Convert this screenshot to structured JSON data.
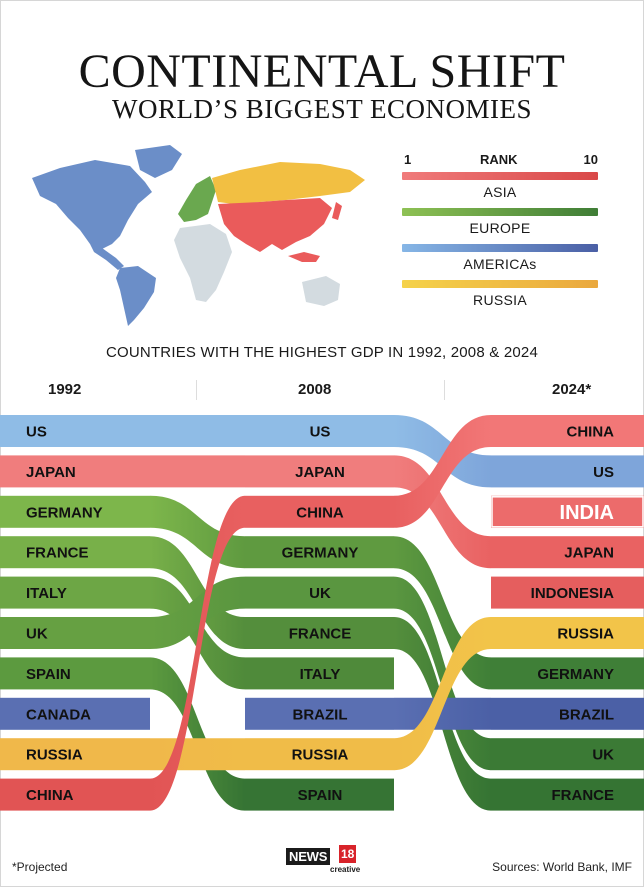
{
  "header": {
    "title": "CONTINENTAL SHIFT",
    "subtitle": "WORLD’S BIGGEST ECONOMIES"
  },
  "legend": {
    "rank_left": "1",
    "rank_label": "RANK",
    "rank_right": "10",
    "items": [
      {
        "label": "ASIA",
        "color_light": "#f07b7b",
        "color_dark": "#d94848"
      },
      {
        "label": "EUROPE",
        "color_light": "#8ec154",
        "color_dark": "#3f7d36"
      },
      {
        "label": "AMERICAs",
        "color_light": "#86b6e6",
        "color_dark": "#4a5fa5"
      },
      {
        "label": "RUSSIA",
        "color_light": "#f5d24a",
        "color_dark": "#eaa83e"
      }
    ]
  },
  "map_colors": {
    "americas": "#6b8ec8",
    "europe": "#6aa84f",
    "russia": "#f2bf42",
    "asia": "#ea5b5b",
    "other": "#d3dbe0"
  },
  "chart_data": {
    "type": "bump",
    "title": "COUNTRIES WITH THE HIGHEST GDP IN 1992, 2008 & 2024",
    "years": [
      "1992",
      "2008",
      "2024*"
    ],
    "rank_range": [
      1,
      10
    ],
    "series": [
      {
        "name": "US",
        "region": "AMERICAs",
        "ranks": [
          1,
          1,
          2
        ],
        "colors": [
          "#8fbce6",
          "#8fbce6",
          "#7ea5da"
        ]
      },
      {
        "name": "JAPAN",
        "region": "ASIA",
        "ranks": [
          2,
          2,
          4
        ],
        "colors": [
          "#f07d7d",
          "#f07d7d",
          "#e96262"
        ]
      },
      {
        "name": "GERMANY",
        "region": "EUROPE",
        "ranks": [
          3,
          4,
          7
        ],
        "colors": [
          "#7db64b",
          "#5f9a40",
          "#3f7f37"
        ]
      },
      {
        "name": "FRANCE",
        "region": "EUROPE",
        "ranks": [
          4,
          6,
          10
        ],
        "colors": [
          "#78b049",
          "#548e3c",
          "#357433"
        ]
      },
      {
        "name": "ITALY",
        "region": "EUROPE",
        "ranks": [
          5,
          7,
          null
        ],
        "colors": [
          "#6da645",
          "#4f8a3a",
          "#4f8a3a"
        ]
      },
      {
        "name": "UK",
        "region": "EUROPE",
        "ranks": [
          6,
          5,
          9
        ],
        "colors": [
          "#66a042",
          "#5a9640",
          "#3b7a35"
        ]
      },
      {
        "name": "SPAIN",
        "region": "EUROPE",
        "ranks": [
          7,
          10,
          null
        ],
        "colors": [
          "#5c9a3f",
          "#367434",
          "#367434"
        ]
      },
      {
        "name": "CANADA",
        "region": "AMERICAs",
        "ranks": [
          8,
          null,
          null
        ],
        "colors": [
          "#5a6fb2",
          "#5a6fb2",
          "#5a6fb2"
        ]
      },
      {
        "name": "BRAZIL",
        "region": "AMERICAs",
        "ranks": [
          null,
          8,
          8
        ],
        "colors": [
          "#5a6fb2",
          "#5a6fb2",
          "#4b60a6"
        ]
      },
      {
        "name": "RUSSIA",
        "region": "RUSSIA",
        "ranks": [
          9,
          9,
          6
        ],
        "colors": [
          "#f0b84a",
          "#f0bc48",
          "#f2c449"
        ]
      },
      {
        "name": "CHINA",
        "region": "ASIA",
        "ranks": [
          10,
          3,
          1
        ],
        "colors": [
          "#e15454",
          "#e86060",
          "#f27777"
        ]
      },
      {
        "name": "INDIA",
        "region": "ASIA",
        "ranks": [
          null,
          null,
          3
        ],
        "colors": [
          "#ec6b6b",
          "#ec6b6b",
          "#ec6b6b"
        ]
      },
      {
        "name": "INDONESIA",
        "region": "ASIA",
        "ranks": [
          null,
          null,
          5
        ],
        "colors": [
          "#ec6b6b",
          "#ec6b6b",
          "#e55e5e"
        ]
      }
    ],
    "highlight": "INDIA"
  },
  "footer": {
    "note": "*Projected",
    "sources": "Sources: World Bank, IMF",
    "logo_news": "NEWS",
    "logo_number": "18",
    "logo_sub": "creative"
  }
}
